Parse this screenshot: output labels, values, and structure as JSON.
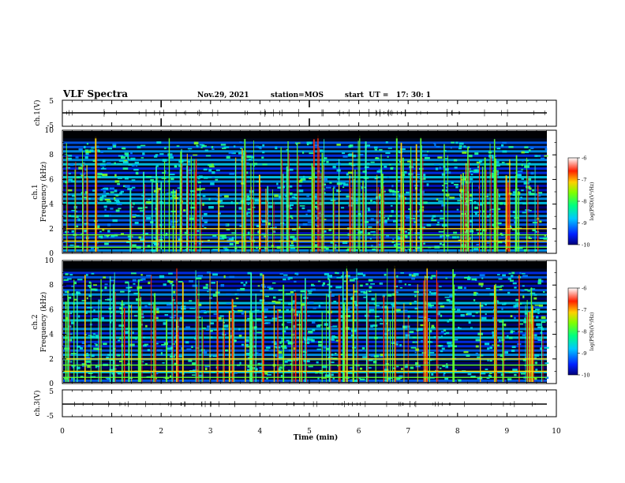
{
  "header": {
    "title": "VLF Spectra",
    "date": "Nov.29, 2021",
    "station": "station=MOS",
    "start_ut": "start  UT =   17: 30: 1"
  },
  "chart_data": [
    {
      "type": "line",
      "name": "ch1-waveform",
      "ylabel": "ch.1(V)",
      "ylim": [
        -5,
        5
      ],
      "ytick_labels": [
        "5",
        "-5"
      ],
      "x": [
        0,
        10
      ],
      "values": [
        0,
        0
      ]
    },
    {
      "type": "heatmap",
      "name": "ch1-spectrogram",
      "ylabel": "ch.1\nFrequency  (kHz)",
      "ylim": [
        0,
        10
      ],
      "ytick_labels": [
        "0",
        "2",
        "4",
        "6",
        "8",
        "10"
      ],
      "xlim": [
        0,
        10
      ],
      "colorbar": {
        "label": "log(PSD)(V²/Hz)",
        "range": [
          -10,
          -6
        ],
        "tick_labels": [
          "-6",
          "-7",
          "-8",
          "-9",
          "-10"
        ]
      },
      "persistent_lines_kHz": [
        0.5,
        1.0,
        1.5,
        2.0
      ]
    },
    {
      "type": "heatmap",
      "name": "ch2-spectrogram",
      "ylabel": "ch.2\nFrequency  (kHz)",
      "ylim": [
        0,
        10
      ],
      "ytick_labels": [
        "0",
        "2",
        "4",
        "6",
        "8",
        "10"
      ],
      "xlim": [
        0,
        10
      ],
      "colorbar": {
        "label": "log(PSD)(V²/Hz)",
        "range": [
          -10,
          -6
        ],
        "tick_labels": [
          "-6",
          "-7",
          "-8",
          "-9",
          "-10"
        ]
      },
      "persistent_lines_kHz": [
        0.5,
        1.0,
        1.5,
        2.0
      ]
    },
    {
      "type": "line",
      "name": "ch3-waveform",
      "ylabel": "ch.3(V)",
      "ylim": [
        -5,
        5
      ],
      "ytick_labels": [
        "5",
        "-5"
      ],
      "x": [
        0,
        10
      ],
      "values": [
        0,
        0
      ]
    }
  ],
  "xaxis": {
    "label": "Time  (min)",
    "range": [
      0,
      10
    ],
    "tick_labels": [
      "0",
      "1",
      "2",
      "3",
      "4",
      "5",
      "6",
      "7",
      "8",
      "9",
      "10"
    ]
  }
}
